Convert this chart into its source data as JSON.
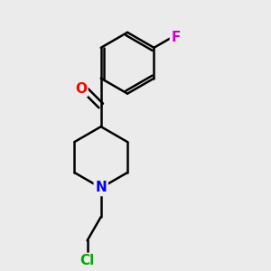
{
  "background_color": "#ebebeb",
  "bond_color": "#000000",
  "atom_colors": {
    "O": "#ff0000",
    "N": "#0000ff",
    "F": "#cc00cc",
    "Cl": "#00aa00"
  },
  "figsize": [
    3.0,
    3.0
  ],
  "dpi": 100
}
